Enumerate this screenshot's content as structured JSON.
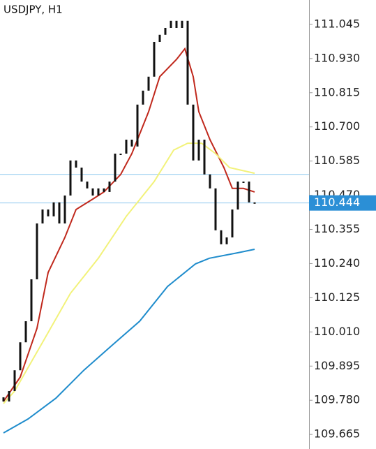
{
  "chart_data": {
    "type": "candlestick",
    "title": "USDJPY, H1",
    "ylim": [
      109.616,
      111.127
    ],
    "xlim": [
      -0.625,
      54.75
    ],
    "yticks": [
      111.045,
      {
        "value": 110.93,
        "label": "110.930"
      },
      110.815,
      {
        "value": 110.7,
        "label": "110.700"
      },
      110.585,
      {
        "value": 110.47,
        "label": "110.470"
      },
      110.355,
      {
        "value": 110.24,
        "label": "110.240"
      },
      110.125,
      {
        "value": 110.01,
        "label": "110.010"
      },
      109.895,
      {
        "value": 109.78,
        "label": "109.780"
      },
      109.665
    ],
    "open": [
      109.79,
      109.776,
      109.811,
      109.881,
      109.975,
      110.046,
      110.187,
      110.375,
      110.422,
      110.399,
      110.446,
      110.375,
      110.469,
      110.587,
      110.563,
      110.516,
      110.493,
      110.469,
      110.493,
      110.481,
      110.516,
      110.61,
      110.61,
      110.657,
      110.634,
      110.775,
      110.822,
      110.869,
      110.986,
      111.01,
      111.033,
      111.057,
      111.033,
      111.057,
      110.775,
      110.587,
      110.657,
      110.54,
      110.493,
      110.352,
      110.305,
      110.328,
      110.422,
      110.516,
      110.516,
      110.446
    ],
    "close": [
      109.776,
      109.811,
      109.881,
      109.975,
      110.046,
      110.187,
      110.375,
      110.422,
      110.399,
      110.446,
      110.375,
      110.469,
      110.587,
      110.563,
      110.516,
      110.493,
      110.469,
      110.493,
      110.481,
      110.516,
      110.61,
      110.61,
      110.657,
      110.634,
      110.775,
      110.822,
      110.869,
      110.986,
      111.01,
      111.033,
      111.057,
      111.033,
      111.057,
      110.775,
      110.587,
      110.657,
      110.54,
      110.493,
      110.352,
      110.305,
      110.328,
      110.422,
      110.516,
      110.516,
      110.446,
      110.444
    ],
    "candle_color": "#111111",
    "series": [
      {
        "color": "#c0281c",
        "x": [
          0,
          3,
          6,
          8,
          11,
          13,
          16,
          18,
          21,
          23,
          26,
          28,
          31,
          32.5,
          34,
          35,
          37,
          39.5,
          41,
          43,
          45
        ],
        "values": [
          109.776,
          109.858,
          110.022,
          110.21,
          110.328,
          110.422,
          110.457,
          110.481,
          110.54,
          110.61,
          110.751,
          110.869,
          110.927,
          110.963,
          110.869,
          110.751,
          110.657,
          110.563,
          110.493,
          110.493,
          110.481
        ]
      },
      {
        "color": "#f2f27a",
        "x": [
          0,
          2,
          7,
          12,
          17,
          22,
          27,
          30.5,
          33,
          35.5,
          38,
          40.5,
          45
        ],
        "values": [
          109.769,
          109.811,
          109.975,
          110.14,
          110.258,
          110.399,
          110.516,
          110.622,
          110.645,
          110.645,
          110.61,
          110.563,
          110.544
        ]
      },
      {
        "color": "#1f8ccc",
        "x": [
          0,
          4.4,
          9.4,
          14.4,
          19.4,
          24.4,
          29.4,
          34.4,
          36.9,
          41.9,
          45
        ],
        "values": [
          109.67,
          109.717,
          109.787,
          109.881,
          109.964,
          110.046,
          110.163,
          110.239,
          110.258,
          110.276,
          110.288
        ]
      }
    ],
    "level_lines": [
      110.54,
      110.444
    ],
    "level_color": "#8ec8ef",
    "current_price": 110.444,
    "current_price_color": "#2b8fd6"
  }
}
